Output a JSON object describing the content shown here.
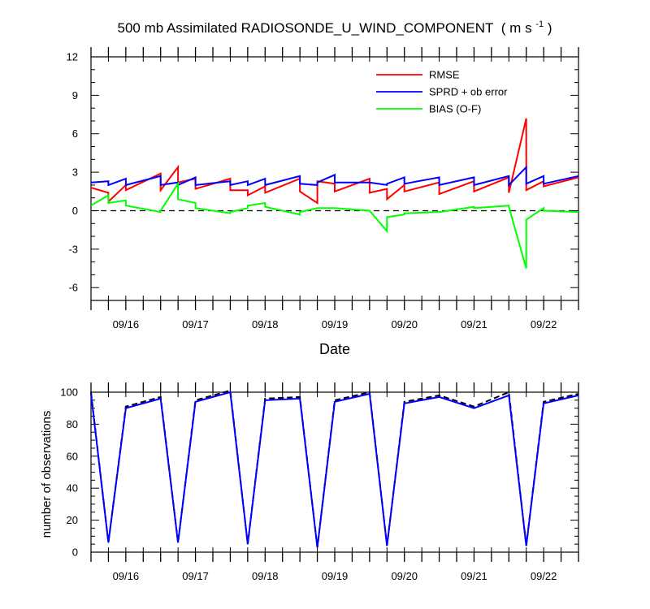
{
  "chart_data": [
    {
      "type": "line",
      "title": "500 mb Assimilated RADIOSONDE_U_WIND_COMPONENT",
      "title_units_main": "( m s",
      "title_units_exp": "-1",
      "title_units_end": " )",
      "xlabel": "Date",
      "ylabel": "",
      "ylim": [
        -7,
        12
      ],
      "xlim": [
        0,
        7
      ],
      "yticks": [
        -6,
        -3,
        0,
        3,
        6,
        9,
        12
      ],
      "xticks": [
        {
          "x": 0.5,
          "label": "09/16"
        },
        {
          "x": 1.5,
          "label": "09/17"
        },
        {
          "x": 2.5,
          "label": "09/18"
        },
        {
          "x": 3.5,
          "label": "09/19"
        },
        {
          "x": 4.5,
          "label": "09/20"
        },
        {
          "x": 5.5,
          "label": "09/21"
        },
        {
          "x": 6.5,
          "label": "09/22"
        }
      ],
      "zero_line": "dashed",
      "legend_position": "top-right",
      "series": [
        {
          "name": "RMSE",
          "color": "#ff0000",
          "x": [
            0,
            0.25,
            0.25,
            0.5,
            0.5,
            1.0,
            1.0,
            1.25,
            1.25,
            1.5,
            1.5,
            2.0,
            2.0,
            2.25,
            2.25,
            2.5,
            2.5,
            3.0,
            3.0,
            3.25,
            3.25,
            3.5,
            3.5,
            4.0,
            4.0,
            4.25,
            4.25,
            4.5,
            4.5,
            5.0,
            5.0,
            5.5,
            5.5,
            6.0,
            6.0,
            6.25,
            6.25,
            6.5,
            6.5,
            7.0
          ],
          "y": [
            1.8,
            1.4,
            0.7,
            2.0,
            1.6,
            2.9,
            1.6,
            3.4,
            2.2,
            2.5,
            1.7,
            2.5,
            1.6,
            1.6,
            1.2,
            1.9,
            1.4,
            2.5,
            1.5,
            0.6,
            2.3,
            2.1,
            1.5,
            2.5,
            1.4,
            1.7,
            0.9,
            2.0,
            1.5,
            2.2,
            1.3,
            2.3,
            1.5,
            2.6,
            1.4,
            7.2,
            1.6,
            2.3,
            1.9,
            2.6
          ]
        },
        {
          "name": "SPRD + ob error",
          "color": "#0000ff",
          "x": [
            0,
            0.25,
            0.25,
            0.5,
            0.5,
            1.0,
            1.0,
            1.25,
            1.25,
            1.5,
            1.5,
            2.0,
            2.0,
            2.25,
            2.25,
            2.5,
            2.5,
            3.0,
            3.0,
            3.25,
            3.25,
            3.5,
            3.5,
            4.0,
            4.0,
            4.25,
            4.25,
            4.5,
            4.5,
            5.0,
            5.0,
            5.5,
            5.5,
            6.0,
            6.0,
            6.25,
            6.25,
            6.5,
            6.5,
            7.0
          ],
          "y": [
            2.2,
            2.3,
            2.0,
            2.5,
            2.0,
            2.7,
            2.0,
            2.2,
            2.0,
            2.6,
            2.0,
            2.3,
            2.0,
            2.3,
            2.0,
            2.5,
            2.0,
            2.7,
            2.1,
            2.0,
            2.2,
            2.8,
            2.2,
            2.2,
            2.2,
            2.0,
            2.1,
            2.6,
            2.1,
            2.6,
            2.0,
            2.6,
            2.0,
            2.7,
            2.0,
            3.4,
            2.1,
            2.7,
            2.1,
            2.7
          ]
        },
        {
          "name": "BIAS (O-F)",
          "color": "#00ff00",
          "x": [
            0,
            0.25,
            0.25,
            0.5,
            0.5,
            1.0,
            1.0,
            1.25,
            1.25,
            1.5,
            1.5,
            2.0,
            2.0,
            2.25,
            2.25,
            2.5,
            2.5,
            3.0,
            3.0,
            3.25,
            3.25,
            3.5,
            3.5,
            4.0,
            4.0,
            4.25,
            4.25,
            4.5,
            4.5,
            5.0,
            5.0,
            5.5,
            5.5,
            6.0,
            6.0,
            6.25,
            6.25,
            6.5,
            6.5,
            7.0
          ],
          "y": [
            0.4,
            1.2,
            0.6,
            0.8,
            0.4,
            -0.1,
            0.0,
            2.1,
            0.9,
            0.6,
            0.2,
            -0.2,
            -0.1,
            0.2,
            0.4,
            0.6,
            0.3,
            -0.3,
            -0.1,
            0.2,
            0.2,
            0.2,
            0.2,
            0.0,
            0.0,
            -1.6,
            -0.5,
            -0.3,
            -0.2,
            -0.1,
            -0.1,
            0.3,
            0.2,
            0.4,
            0.3,
            -4.5,
            -0.7,
            0.2,
            0.0,
            -0.1
          ]
        }
      ]
    },
    {
      "type": "line",
      "title": "",
      "xlabel": "",
      "ylabel": "number of observations",
      "ylim": [
        0,
        100
      ],
      "xlim": [
        0,
        7
      ],
      "yticks": [
        0,
        20,
        40,
        60,
        80,
        100
      ],
      "xticks": [
        {
          "x": 0.5,
          "label": "09/16"
        },
        {
          "x": 1.5,
          "label": "09/17"
        },
        {
          "x": 2.5,
          "label": "09/18"
        },
        {
          "x": 3.5,
          "label": "09/19"
        },
        {
          "x": 4.5,
          "label": "09/20"
        },
        {
          "x": 5.5,
          "label": "09/21"
        },
        {
          "x": 6.5,
          "label": "09/22"
        }
      ],
      "series": [
        {
          "name": "",
          "color": "#000000",
          "style": "dashed",
          "x": [
            0,
            0.25,
            0.5,
            1.0,
            1.25,
            1.5,
            2.0,
            2.25,
            2.5,
            3.0,
            3.25,
            3.5,
            4.0,
            4.25,
            4.5,
            5.0,
            5.5,
            6.0,
            6.25,
            6.5,
            7.0
          ],
          "y": [
            100,
            6,
            91,
            97,
            6,
            95,
            101,
            5,
            96,
            97,
            3,
            95,
            100,
            4,
            94,
            98,
            91,
            100,
            4,
            94,
            99
          ]
        },
        {
          "name": "",
          "color": "#0000ff",
          "style": "solid",
          "x": [
            0,
            0.25,
            0.5,
            1.0,
            1.25,
            1.5,
            2.0,
            2.25,
            2.5,
            3.0,
            3.25,
            3.5,
            4.0,
            4.25,
            4.5,
            5.0,
            5.5,
            6.0,
            6.25,
            6.5,
            7.0
          ],
          "y": [
            99,
            6,
            90,
            96,
            6,
            94,
            100,
            5,
            95,
            96,
            3,
            94,
            99,
            4,
            93,
            97,
            90,
            98,
            4,
            93,
            98
          ]
        }
      ]
    }
  ]
}
